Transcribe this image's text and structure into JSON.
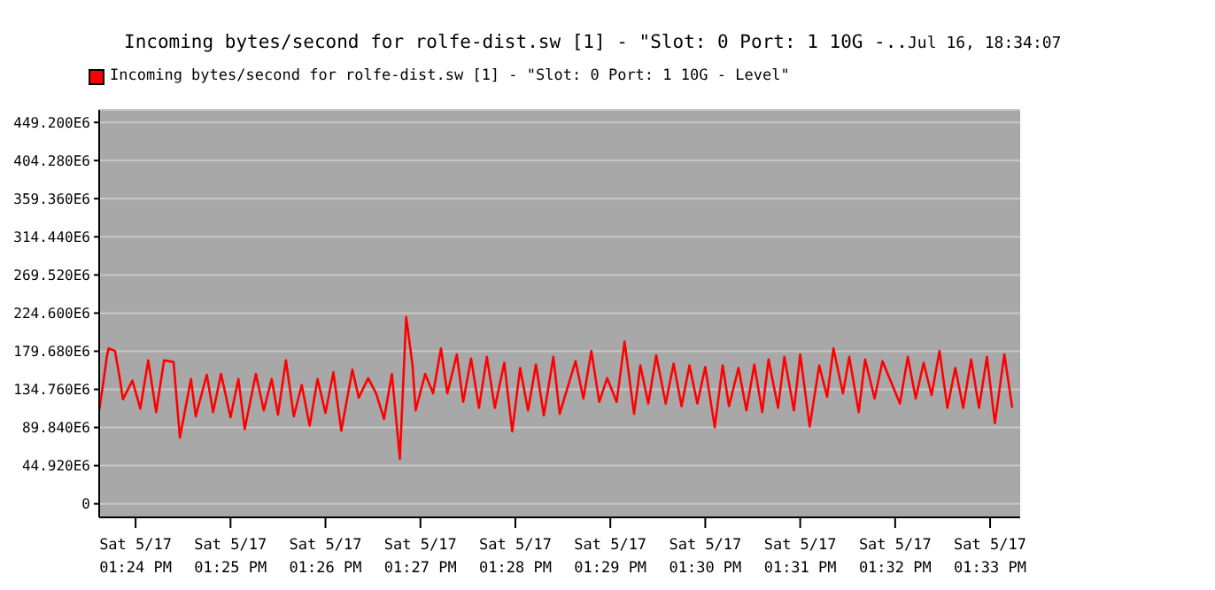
{
  "chart_data": {
    "type": "line",
    "title": "Incoming bytes/second for rolfe-dist.sw [1] - \"Slot: 0 Port: 1 10G -..",
    "annotations": [
      "Jul 16, 18:34:07"
    ],
    "legend": "top left",
    "grid": "y",
    "marker": "none",
    "line_style": "solid",
    "xlim": [
      "--05-17T13:23:37",
      "--05-17T13:33:19"
    ],
    "xticks": [
      {
        "value": "--05-17T13:24",
        "label": "Sat 5/17\n01:24 PM"
      },
      {
        "value": "--05-17T13:25",
        "label": "Sat 5/17\n01:25 PM"
      },
      {
        "value": "--05-17T13:26",
        "label": "Sat 5/17\n01:26 PM"
      },
      {
        "value": "--05-17T13:27",
        "label": "Sat 5/17\n01:27 PM"
      },
      {
        "value": "--05-17T13:28",
        "label": "Sat 5/17\n01:28 PM"
      },
      {
        "value": "--05-17T13:29",
        "label": "Sat 5/17\n01:29 PM"
      },
      {
        "value": "--05-17T13:30",
        "label": "Sat 5/17\n01:30 PM"
      },
      {
        "value": "--05-17T13:31",
        "label": "Sat 5/17\n01:31 PM"
      },
      {
        "value": "--05-17T13:32",
        "label": "Sat 5/17\n01:32 PM"
      },
      {
        "value": "--05-17T13:33",
        "label": "Sat 5/17\n01:33 PM"
      }
    ],
    "ylim": [
      -16000000,
      464000000
    ],
    "yticks": [
      {
        "value": 0,
        "label": "0"
      },
      {
        "value": 44920000,
        "label": "44.920E6"
      },
      {
        "value": 89840000,
        "label": "89.840E6"
      },
      {
        "value": 134760000,
        "label": "134.760E6"
      },
      {
        "value": 179680000,
        "label": "179.680E6"
      },
      {
        "value": 224600000,
        "label": "224.600E6"
      },
      {
        "value": 269520000,
        "label": "269.520E6"
      },
      {
        "value": 314440000,
        "label": "314.440E6"
      },
      {
        "value": 359360000,
        "label": "359.360E6"
      },
      {
        "value": 404280000,
        "label": "404.280E6"
      },
      {
        "value": 449200000,
        "label": "449.200E6"
      }
    ],
    "series": [
      {
        "name": "Incoming bytes/second for rolfe-dist.sw [1] - \"Slot: 0 Port: 1 10G - Level\"",
        "color": "#ff0000",
        "x": [
          "--05-17T13:23:37",
          "--05-17T13:23:39",
          "--05-17T13:23:42",
          "--05-17T13:23:43",
          "--05-17T13:23:47",
          "--05-17T13:23:50",
          "--05-17T13:23:52",
          "--05-17T13:23:58",
          "--05-17T13:24:03",
          "--05-17T13:24:08",
          "--05-17T13:24:13",
          "--05-17T13:24:18",
          "--05-17T13:24:24",
          "--05-17T13:24:28",
          "--05-17T13:24:35",
          "--05-17T13:24:38",
          "--05-17T13:24:45",
          "--05-17T13:24:49",
          "--05-17T13:24:54",
          "--05-17T13:25:00",
          "--05-17T13:25:05",
          "--05-17T13:25:09",
          "--05-17T13:25:16",
          "--05-17T13:25:21",
          "--05-17T13:25:26",
          "--05-17T13:25:30",
          "--05-17T13:25:35",
          "--05-17T13:25:40",
          "--05-17T13:25:45",
          "--05-17T13:25:50",
          "--05-17T13:25:55",
          "--05-17T13:26:00",
          "--05-17T13:26:05",
          "--05-17T13:26:10",
          "--05-17T13:26:17",
          "--05-17T13:26:21",
          "--05-17T13:26:27",
          "--05-17T13:26:32",
          "--05-17T13:26:37",
          "--05-17T13:26:42",
          "--05-17T13:26:47",
          "--05-17T13:26:51",
          "--05-17T13:26:52",
          "--05-17T13:26:55",
          "--05-17T13:26:57",
          "--05-17T13:27:03",
          "--05-17T13:27:08",
          "--05-17T13:27:13",
          "--05-17T13:27:17",
          "--05-17T13:27:23",
          "--05-17T13:27:27",
          "--05-17T13:27:32",
          "--05-17T13:27:37",
          "--05-17T13:27:42",
          "--05-17T13:27:47",
          "--05-17T13:27:53",
          "--05-17T13:27:58",
          "--05-17T13:28:03",
          "--05-17T13:28:08",
          "--05-17T13:28:13",
          "--05-17T13:28:18",
          "--05-17T13:28:24",
          "--05-17T13:28:28",
          "--05-17T13:28:38",
          "--05-17T13:28:43",
          "--05-17T13:28:48",
          "--05-17T13:28:53",
          "--05-17T13:28:58",
          "--05-17T13:29:04",
          "--05-17T13:29:09",
          "--05-17T13:29:15",
          "--05-17T13:29:19",
          "--05-17T13:29:24",
          "--05-17T13:29:29",
          "--05-17T13:29:35",
          "--05-17T13:29:40",
          "--05-17T13:29:45",
          "--05-17T13:29:50",
          "--05-17T13:29:55",
          "--05-17T13:30:00",
          "--05-17T13:30:06",
          "--05-17T13:30:11",
          "--05-17T13:30:15",
          "--05-17T13:30:21",
          "--05-17T13:30:26",
          "--05-17T13:30:31",
          "--05-17T13:30:36",
          "--05-17T13:30:40",
          "--05-17T13:30:46",
          "--05-17T13:30:50",
          "--05-17T13:30:56",
          "--05-17T13:31:00",
          "--05-17T13:31:06",
          "--05-17T13:31:12",
          "--05-17T13:31:17",
          "--05-17T13:31:21",
          "--05-17T13:31:27",
          "--05-17T13:31:31",
          "--05-17T13:31:37",
          "--05-17T13:31:41",
          "--05-17T13:31:47",
          "--05-17T13:31:52",
          "--05-17T13:32:03",
          "--05-17T13:32:08",
          "--05-17T13:32:13",
          "--05-17T13:32:18",
          "--05-17T13:32:23",
          "--05-17T13:32:28",
          "--05-17T13:32:33",
          "--05-17T13:32:38",
          "--05-17T13:32:43",
          "--05-17T13:32:48",
          "--05-17T13:32:53",
          "--05-17T13:32:58",
          "--05-17T13:33:03",
          "--05-17T13:33:09",
          "--05-17T13:33:14"
        ],
        "values": [
          110000000.0,
          135000000.0,
          175000000.0,
          183000000.0,
          180000000.0,
          148000000.0,
          123000000.0,
          145000000.0,
          112000000.0,
          169000000.0,
          108000000.0,
          169000000.0,
          167000000.0,
          78000000.0,
          147000000.0,
          103000000.0,
          152000000.0,
          108000000.0,
          153000000.0,
          102000000.0,
          147000000.0,
          88000000.0,
          153000000.0,
          110000000.0,
          147000000.0,
          105000000.0,
          169000000.0,
          103000000.0,
          140000000.0,
          92000000.0,
          147000000.0,
          107000000.0,
          155000000.0,
          86000000.0,
          158000000.0,
          125000000.0,
          148000000.0,
          130000000.0,
          100000000.0,
          153000000.0,
          53000000.0,
          220000000.0,
          206000000.0,
          163000000.0,
          110000000.0,
          153000000.0,
          130000000.0,
          183000000.0,
          130000000.0,
          176000000.0,
          120000000.0,
          171000000.0,
          113000000.0,
          173000000.0,
          113000000.0,
          166000000.0,
          85000000.0,
          160000000.0,
          110000000.0,
          164000000.0,
          104000000.0,
          173000000.0,
          106000000.0,
          168000000.0,
          124000000.0,
          180000000.0,
          120000000.0,
          148000000.0,
          120000000.0,
          191000000.0,
          106000000.0,
          163000000.0,
          118000000.0,
          175000000.0,
          118000000.0,
          165000000.0,
          115000000.0,
          163000000.0,
          118000000.0,
          161000000.0,
          90000000.0,
          163000000.0,
          115000000.0,
          160000000.0,
          110000000.0,
          164000000.0,
          108000000.0,
          170000000.0,
          113000000.0,
          173000000.0,
          110000000.0,
          176000000.0,
          91000000.0,
          163000000.0,
          126000000.0,
          183000000.0,
          130000000.0,
          173000000.0,
          108000000.0,
          170000000.0,
          124000000.0,
          168000000.0,
          118000000.0,
          173000000.0,
          124000000.0,
          166000000.0,
          128000000.0,
          180000000.0,
          113000000.0,
          160000000.0,
          113000000.0,
          170000000.0,
          113000000.0,
          173000000.0,
          95000000.0,
          176000000.0,
          113000000.0
        ]
      }
    ]
  }
}
